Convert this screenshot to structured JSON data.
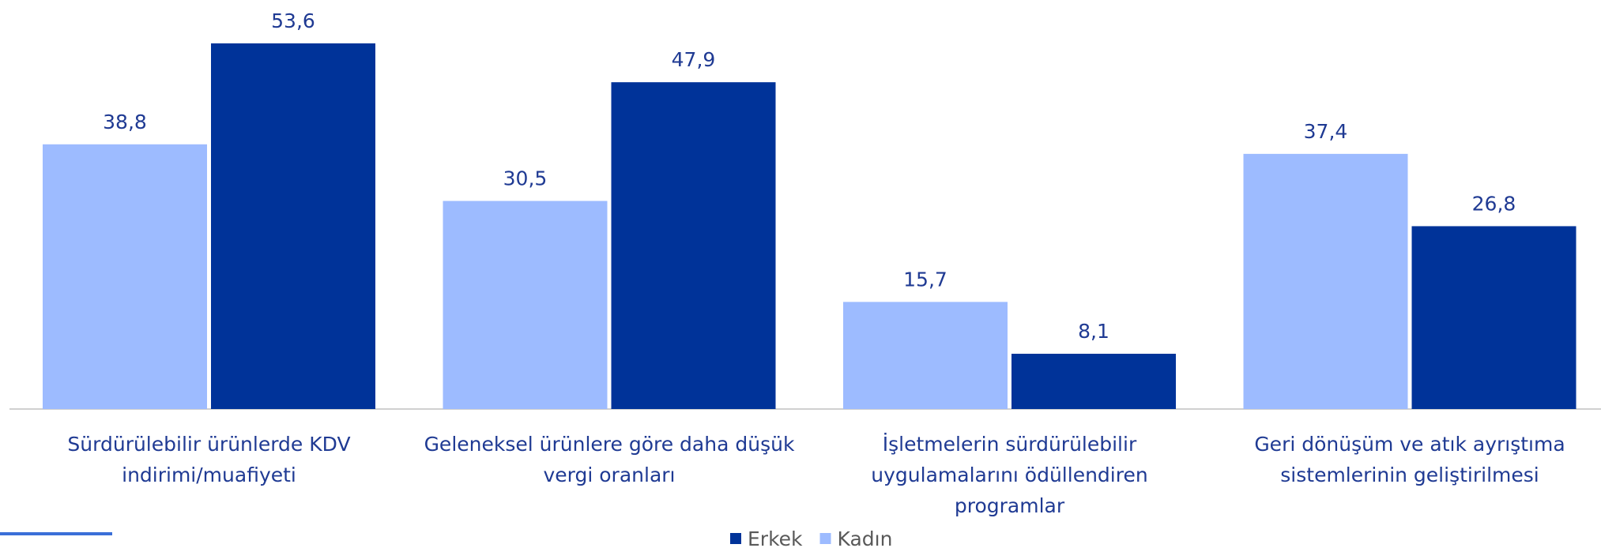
{
  "chart_data": {
    "type": "bar",
    "categories": [
      "Sürdürülebilir ürünlerde KDV\nindirimi/muafiyeti",
      "Geleneksel ürünlere göre daha düşük\nvergi oranları",
      "İşletmelerin sürdürülebilir\nuygulamalarını ödüllendiren\nprogramlar",
      "Geri dönüşüm ve atık ayrıştıma\nsistemlerinin geliştirilmesi"
    ],
    "series": [
      {
        "name": "Kadın",
        "color": "#9dbbff",
        "values": [
          38.8,
          30.5,
          15.7,
          37.4
        ],
        "value_labels": [
          "38,8",
          "30,5",
          "15,7",
          "37,4"
        ]
      },
      {
        "name": "Erkek",
        "color": "#003399",
        "values": [
          53.6,
          47.9,
          8.1,
          26.8
        ],
        "value_labels": [
          "53,6",
          "47,9",
          "8,1",
          "26,8"
        ]
      }
    ],
    "legend": "bottom"
  }
}
